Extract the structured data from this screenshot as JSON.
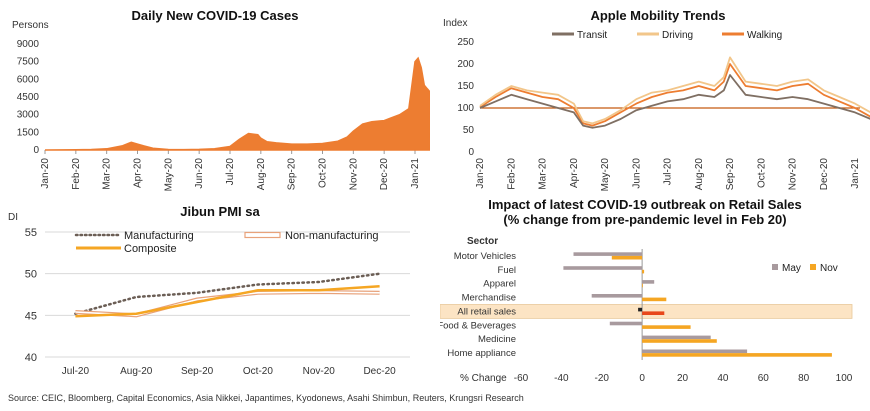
{
  "source": "Source: CEIC, Bloomberg, Capital Economics, Asia Nikkei, Japantimes, Kyodonews, Asahi Shimbun, Reuters, Krungsri Research",
  "chart_data": [
    {
      "id": "cases",
      "type": "area",
      "title": "Daily New COVID-19 Cases",
      "ylabel": "Persons",
      "ylim": [
        0,
        9000
      ],
      "yticks": [
        0,
        1500,
        3000,
        4500,
        6000,
        7500,
        9000
      ],
      "xticks": [
        "Jan-20",
        "Feb-20",
        "Mar-20",
        "Apr-20",
        "May-20",
        "Jun-20",
        "Jul-20",
        "Aug-20",
        "Sep-20",
        "Oct-20",
        "Nov-20",
        "Dec-20",
        "Jan-21"
      ],
      "x": [
        0,
        0.5,
        1,
        1.5,
        2,
        2.5,
        2.8,
        3,
        3.2,
        3.5,
        4,
        4.5,
        5,
        5.5,
        6,
        6.3,
        6.6,
        6.9,
        7,
        7.2,
        7.5,
        8,
        8.5,
        9,
        9.5,
        9.8,
        10,
        10.3,
        10.6,
        11,
        11.2,
        11.5,
        11.8,
        12,
        12.1,
        12.2,
        12.3,
        12.4,
        12.5
      ],
      "values": [
        0,
        5,
        15,
        40,
        100,
        350,
        650,
        500,
        350,
        150,
        40,
        30,
        50,
        100,
        300,
        900,
        1400,
        1300,
        1000,
        700,
        600,
        500,
        500,
        550,
        750,
        1100,
        1600,
        2200,
        2400,
        2500,
        2700,
        3000,
        3500,
        7500,
        7800,
        7000,
        5500,
        5200,
        4900
      ],
      "color": "#ED7D31"
    },
    {
      "id": "mobility",
      "type": "line",
      "title": "Apple Mobility Trends",
      "ylabel": "Index",
      "ylim": [
        0,
        250
      ],
      "yticks": [
        0,
        50,
        100,
        150,
        200,
        250
      ],
      "baseline": 100,
      "xticks": [
        "Jan-20",
        "Feb-20",
        "Mar-20",
        "Apr-20",
        "May-20",
        "Jun-20",
        "Jul-20",
        "Aug-20",
        "Sep-20",
        "Oct-20",
        "Nov-20",
        "Dec-20",
        "Jan-21"
      ],
      "series": [
        {
          "name": "Transit",
          "color": "#7F6F63",
          "x": [
            0,
            0.5,
            1,
            1.5,
            2,
            2.5,
            3,
            3.3,
            3.6,
            4,
            4.5,
            5,
            5.5,
            6,
            6.5,
            7,
            7.5,
            7.8,
            8,
            8.5,
            9,
            9.5,
            10,
            10.5,
            11,
            11.5,
            12,
            12.5
          ],
          "values": [
            100,
            115,
            130,
            120,
            110,
            100,
            90,
            60,
            55,
            60,
            75,
            95,
            105,
            115,
            120,
            130,
            125,
            140,
            175,
            130,
            125,
            120,
            125,
            120,
            110,
            100,
            90,
            75
          ]
        },
        {
          "name": "Driving",
          "color": "#F2C68A",
          "x": [
            0,
            0.5,
            1,
            1.5,
            2,
            2.5,
            3,
            3.3,
            3.6,
            4,
            4.5,
            5,
            5.5,
            6,
            6.5,
            7,
            7.5,
            7.8,
            8,
            8.5,
            9,
            9.5,
            10,
            10.5,
            11,
            11.5,
            12,
            12.5
          ],
          "values": [
            105,
            130,
            150,
            140,
            135,
            130,
            110,
            70,
            65,
            75,
            95,
            120,
            135,
            140,
            150,
            160,
            150,
            170,
            215,
            160,
            155,
            150,
            160,
            165,
            140,
            125,
            110,
            90
          ]
        },
        {
          "name": "Walking",
          "color": "#ED7D31",
          "x": [
            0,
            0.5,
            1,
            1.5,
            2,
            2.5,
            3,
            3.3,
            3.6,
            4,
            4.5,
            5,
            5.5,
            6,
            6.5,
            7,
            7.5,
            7.8,
            8,
            8.5,
            9,
            9.5,
            10,
            10.5,
            11,
            11.5,
            12,
            12.5
          ],
          "values": [
            102,
            125,
            145,
            135,
            125,
            120,
            100,
            65,
            60,
            70,
            90,
            110,
            125,
            135,
            140,
            150,
            140,
            160,
            200,
            150,
            145,
            140,
            150,
            155,
            130,
            115,
            100,
            80
          ]
        }
      ]
    },
    {
      "id": "pmi",
      "type": "line",
      "title": "Jibun PMI sa",
      "ylabel": "DI",
      "ylim": [
        40,
        55
      ],
      "yticks": [
        40,
        45,
        50,
        55
      ],
      "categories": [
        "Jul-20",
        "Aug-20",
        "Sep-20",
        "Oct-20",
        "Nov-20",
        "Dec-20"
      ],
      "series": [
        {
          "name": "Manufacturing",
          "values": [
            45.2,
            47.2,
            47.7,
            48.7,
            49.0,
            50.0
          ],
          "color": "#6B5E55",
          "style": "dotted"
        },
        {
          "name": "Non-manufacturing",
          "values": [
            45.4,
            45.0,
            46.9,
            47.7,
            47.8,
            47.7
          ],
          "color": "#E8A27A",
          "style": "double"
        },
        {
          "name": "Composite",
          "values": [
            44.9,
            45.2,
            46.6,
            48.0,
            48.0,
            48.5
          ],
          "color": "#F5A623",
          "style": "solid"
        }
      ]
    },
    {
      "id": "retail",
      "type": "bar",
      "title": "Impact of latest COVID-19 outbreak on Retail Sales",
      "subtitle": "(% change from pre-pandemic level in Feb 20)",
      "axis_header": "Sector",
      "xlabel": "% Change",
      "xlim": [
        -60,
        100
      ],
      "xticks": [
        -60,
        -40,
        -20,
        0,
        20,
        40,
        60,
        80,
        100
      ],
      "categories": [
        "Motor Vehicles",
        "Fuel",
        "Apparel",
        "Merchandise",
        "All retail sales",
        "Food & Beverages",
        "Medicine",
        "Home appliance"
      ],
      "highlight": "All retail sales",
      "series": [
        {
          "name": "May",
          "values": [
            -34,
            -39,
            6,
            -25,
            -2,
            -16,
            34,
            52
          ],
          "color": "#A89A9E"
        },
        {
          "name": "Nov",
          "values": [
            -15,
            1,
            0,
            12,
            11,
            24,
            37,
            94
          ],
          "color": "#F5A623"
        }
      ]
    }
  ]
}
